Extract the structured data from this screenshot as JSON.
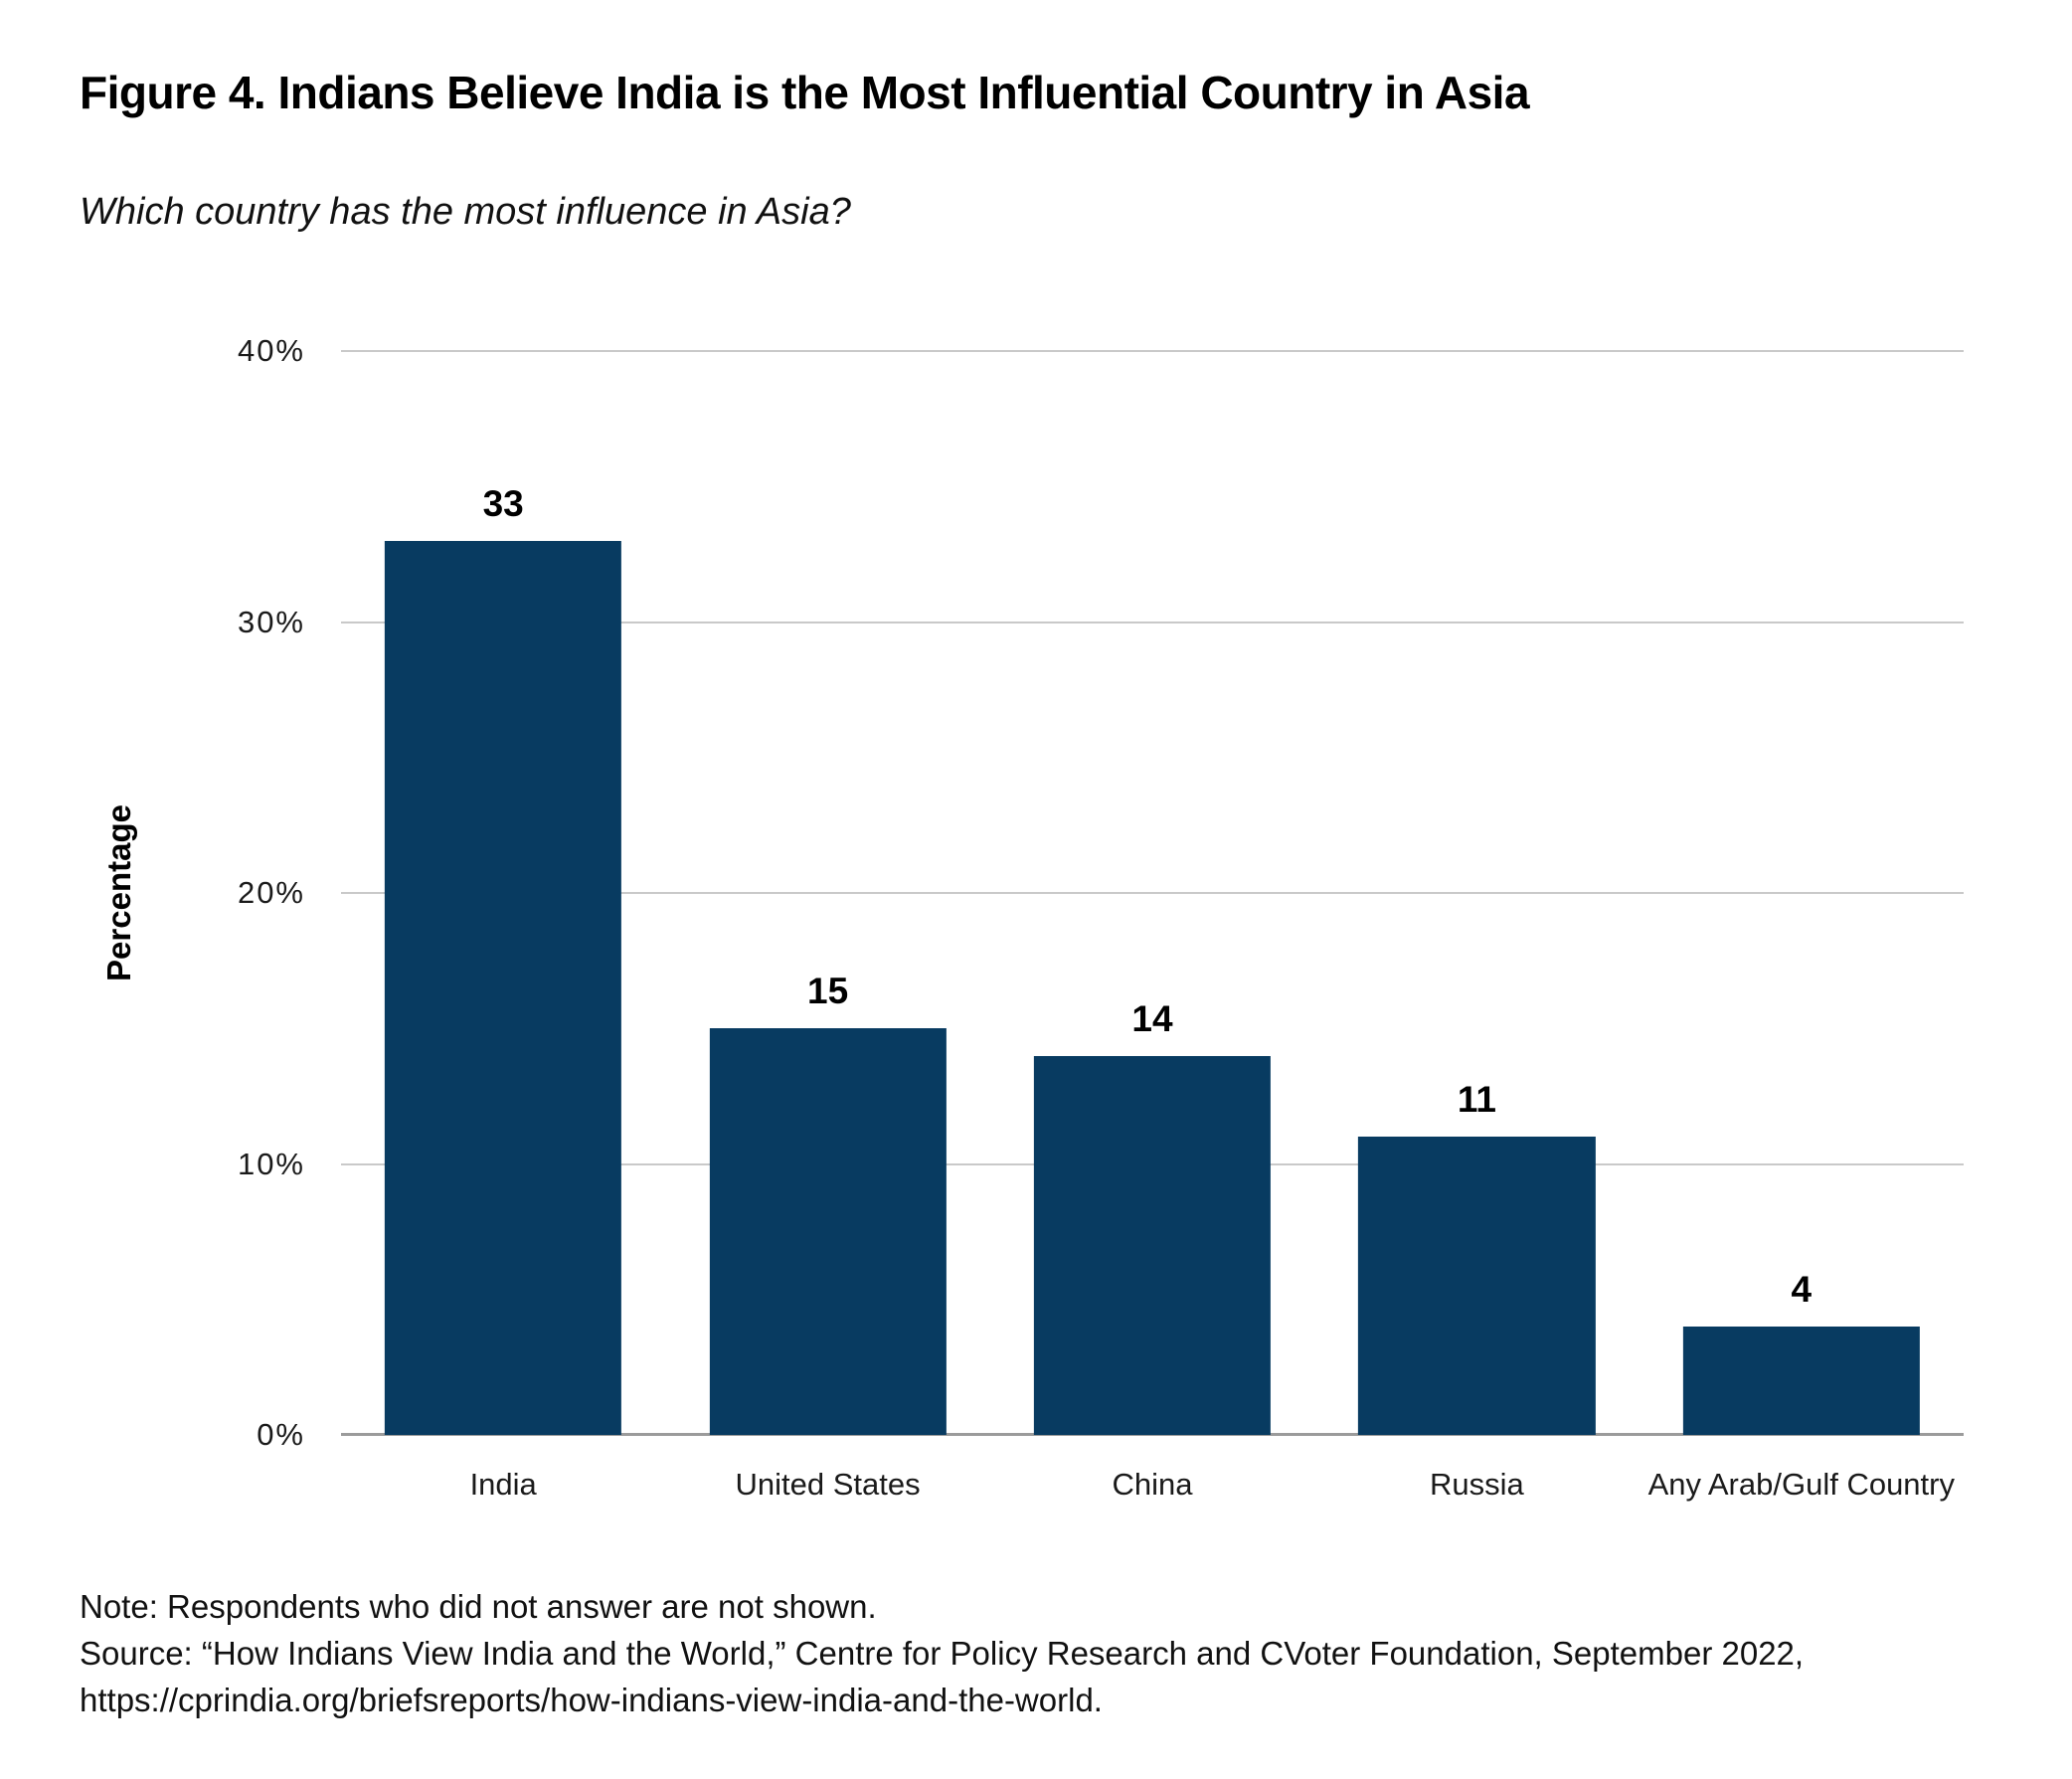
{
  "figure": {
    "title": "Figure 4. Indians Believe India is the Most Influential Country in Asia",
    "subtitle": "Which country has the most influence in Asia?"
  },
  "chart_data": {
    "type": "bar",
    "categories": [
      "India",
      "United States",
      "China",
      "Russia",
      "Any Arab/Gulf Country"
    ],
    "values": [
      33,
      15,
      14,
      11,
      4
    ],
    "title": "Figure 4. Indians Believe India is the Most Influential Country in Asia",
    "subtitle": "Which country has the most influence in Asia?",
    "xlabel": "",
    "ylabel": "Percentage",
    "ylim": [
      0,
      40
    ],
    "yticks": [
      {
        "value": 0,
        "label": "0%"
      },
      {
        "value": 10,
        "label": "10%"
      },
      {
        "value": 20,
        "label": "20%"
      },
      {
        "value": 30,
        "label": "30%"
      },
      {
        "value": 40,
        "label": "40%"
      }
    ],
    "grid": true,
    "legend": false,
    "bar_labels_shown": true
  },
  "colors": {
    "bar": "#083b61",
    "gridline": "#c9c9c9",
    "axis_line": "#9b9b9b",
    "text": "#000000"
  },
  "notes": {
    "note": "Note: Respondents who did not answer are not shown.",
    "source_line1": "Source: “How Indians View India and the World,” Centre for Policy Research and CVoter Foundation, September 2022,",
    "source_line2": "https://cprindia.org/briefsreports/how-indians-view-india-and-the-world."
  }
}
